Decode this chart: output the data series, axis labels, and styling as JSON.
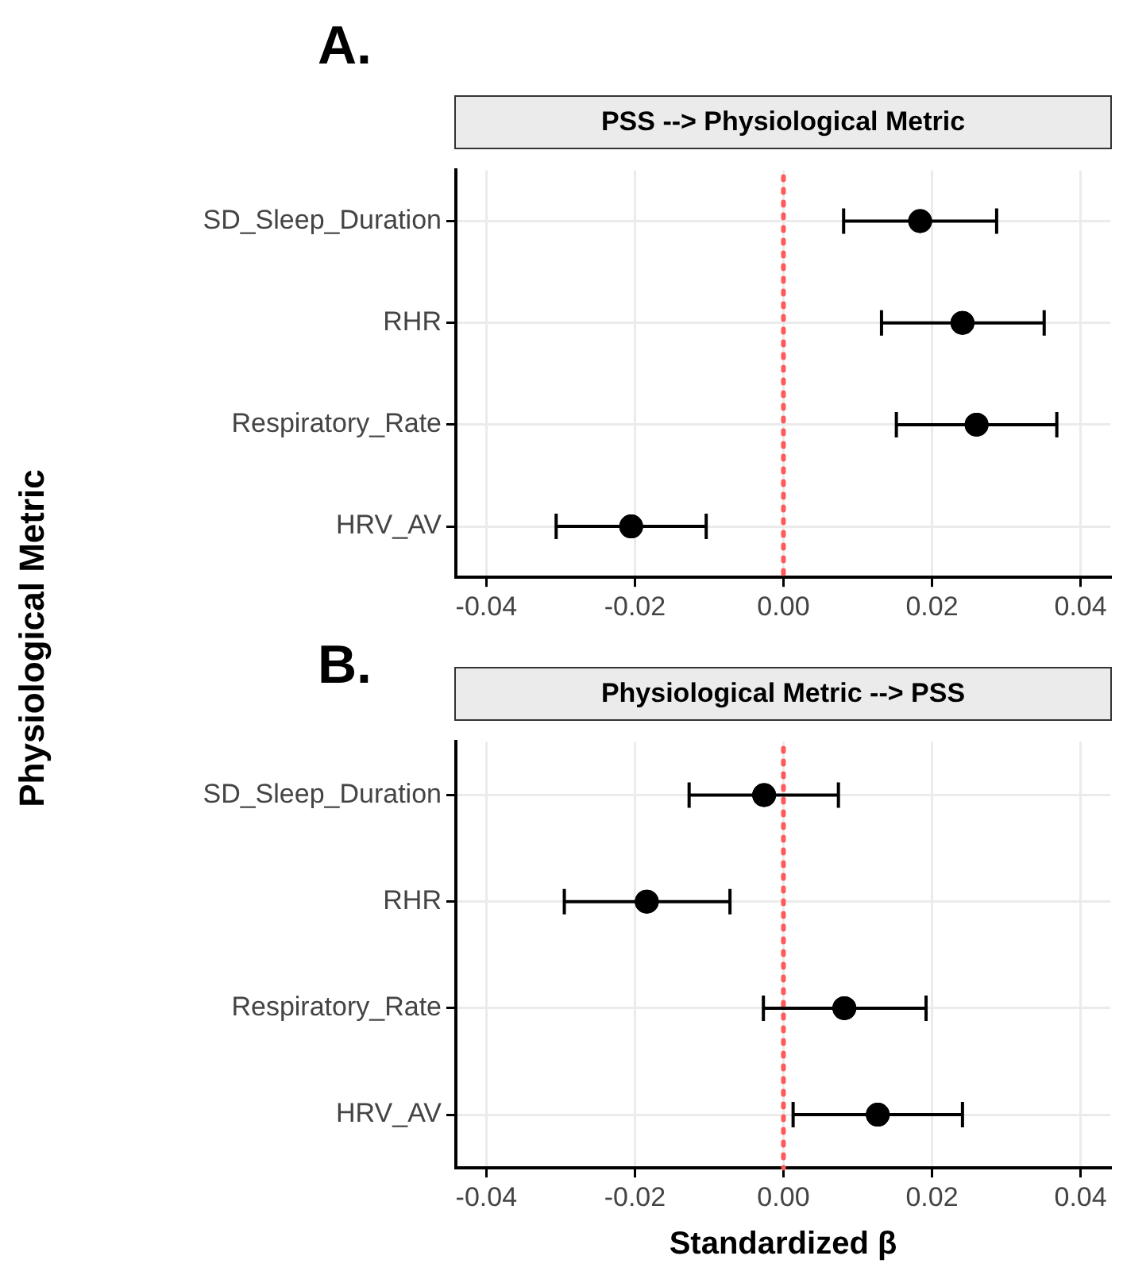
{
  "chart_data": [
    {
      "type": "scatter",
      "orientation": "horizontal",
      "title": "PSS --> Physiological Metric",
      "ylabel": "Physiological Metric",
      "annotations": [
        "A."
      ],
      "categories": [
        "SD_Sleep_Duration",
        "RHR",
        "Respiratory_Rate",
        "HRV_AV"
      ],
      "values": [
        0.0184,
        0.0241,
        0.026,
        -0.0205
      ],
      "errors": [
        [
          0.0081,
          0.0287
        ],
        [
          0.0132,
          0.0351
        ],
        [
          0.0152,
          0.0368
        ],
        [
          -0.0306,
          -0.0104
        ]
      ],
      "color": "#000000",
      "marker": "circle",
      "xlim": [
        -0.0441,
        0.044
      ],
      "xticks": [
        -0.04,
        -0.02,
        {
          "value": 0,
          "label": "0.00"
        },
        0.02,
        0.04
      ],
      "grid": true,
      "ref_lines": [
        {
          "axis": "x",
          "value": 0,
          "color": "#ff5a5a",
          "line_style": "dotted"
        }
      ]
    },
    {
      "type": "scatter",
      "orientation": "horizontal",
      "title": "Physiological Metric --> PSS",
      "xlabel": "Standardized β",
      "annotations": [
        "B."
      ],
      "categories": [
        "SD_Sleep_Duration",
        "RHR",
        "Respiratory_Rate",
        "HRV_AV"
      ],
      "values": [
        -0.0026,
        -0.0184,
        0.0082,
        0.0127
      ],
      "errors": [
        [
          -0.0127,
          0.0074
        ],
        [
          -0.0295,
          -0.0072
        ],
        [
          -0.0027,
          0.0192
        ],
        [
          0.0013,
          0.0241
        ]
      ],
      "color": "#000000",
      "marker": "circle",
      "xlim": [
        -0.0441,
        0.044
      ],
      "xticks": [
        -0.04,
        -0.02,
        {
          "value": 0,
          "label": "0.00"
        },
        0.02,
        0.04
      ],
      "grid": true,
      "ref_lines": [
        {
          "axis": "x",
          "value": 0,
          "color": "#ff5a5a",
          "line_style": "dotted"
        }
      ]
    }
  ]
}
